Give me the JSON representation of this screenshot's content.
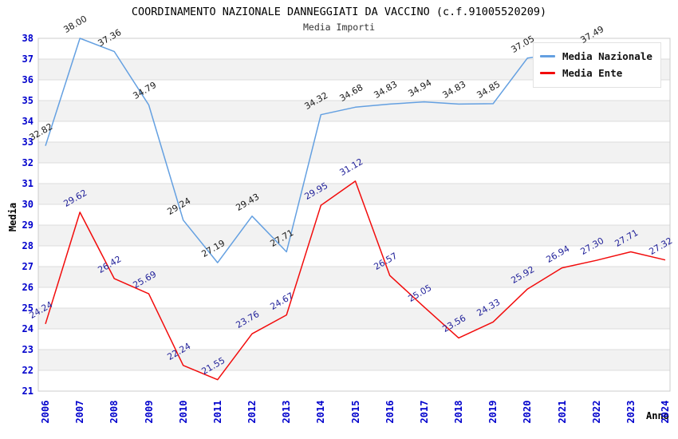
{
  "header": {
    "title": "COORDINAMENTO NAZIONALE DANNEGGIATI DA VACCINO (c.f.91005520209)",
    "subtitle": "Media Importi"
  },
  "axes": {
    "y_title": "Media",
    "x_title": "Anno",
    "y_ticks": [
      21,
      22,
      23,
      24,
      25,
      26,
      27,
      28,
      29,
      30,
      31,
      32,
      33,
      34,
      35,
      36,
      37,
      38
    ],
    "categories": [
      "2006",
      "2007",
      "2008",
      "2009",
      "2010",
      "2011",
      "2012",
      "2013",
      "2014",
      "2015",
      "2016",
      "2017",
      "2018",
      "2019",
      "2020",
      "2021",
      "2022",
      "2023",
      "2024"
    ]
  },
  "legend": {
    "items": [
      {
        "label": "Media Nazionale",
        "color": "#64a0e1"
      },
      {
        "label": "Media Ente",
        "color": "#f20c0c"
      }
    ]
  },
  "colors": {
    "tick_label": "#0000cc",
    "band_fill": "#f2f2f2",
    "gridline": "#dcdcdc",
    "plot_border": "#cccccc",
    "national_line": "#64a0e1",
    "ente_line": "#f20c0c",
    "national_point_label": "#1a1a1a",
    "ente_point_label": "#22229a"
  },
  "chart_data": {
    "type": "line",
    "title": "COORDINAMENTO NAZIONALE DANNEGGIATI DA VACCINO (c.f.91005520209)",
    "subtitle": "Media Importi",
    "xlabel": "Anno",
    "ylabel": "Media",
    "ylim": [
      21,
      38
    ],
    "grid": true,
    "alternating_bands": true,
    "legend_position": "top-right",
    "x_categories": [
      2006,
      2007,
      2008,
      2009,
      2010,
      2011,
      2012,
      2013,
      2014,
      2015,
      2016,
      2017,
      2018,
      2019,
      2020,
      2021,
      2022,
      2023,
      2024
    ],
    "series": [
      {
        "name": "Media Nazionale",
        "color": "#64a0e1",
        "label_color": "#1a1a1a",
        "points": [
          {
            "year": 2006,
            "value": 32.82,
            "label": "32.82"
          },
          {
            "year": 2007,
            "value": 38.0,
            "label": "38.00"
          },
          {
            "year": 2008,
            "value": 37.36,
            "label": "37.36"
          },
          {
            "year": 2009,
            "value": 34.79,
            "label": "34.79"
          },
          {
            "year": 2010,
            "value": 29.24,
            "label": "29.24"
          },
          {
            "year": 2011,
            "value": 27.19,
            "label": "27.19"
          },
          {
            "year": 2012,
            "value": 29.43,
            "label": "29.43"
          },
          {
            "year": 2013,
            "value": 27.71,
            "label": "27.71"
          },
          {
            "year": 2014,
            "value": 34.32,
            "label": "34.32"
          },
          {
            "year": 2015,
            "value": 34.68,
            "label": "34.68"
          },
          {
            "year": 2016,
            "value": 34.83,
            "label": "34.83"
          },
          {
            "year": 2017,
            "value": 34.94,
            "label": "34.94"
          },
          {
            "year": 2018,
            "value": 34.83,
            "label": "34.83"
          },
          {
            "year": 2019,
            "value": 34.85,
            "label": "34.85"
          },
          {
            "year": 2020,
            "value": 37.05,
            "label": "37.05"
          },
          {
            "year": 2022,
            "value": 37.49,
            "label": "37.49"
          }
        ]
      },
      {
        "name": "Media Ente",
        "color": "#f20c0c",
        "label_color": "#22229a",
        "points": [
          {
            "year": 2006,
            "value": 24.24,
            "label": "24.24"
          },
          {
            "year": 2007,
            "value": 29.62,
            "label": "29.62"
          },
          {
            "year": 2008,
            "value": 26.42,
            "label": "26.42"
          },
          {
            "year": 2009,
            "value": 25.69,
            "label": "25.69"
          },
          {
            "year": 2010,
            "value": 22.24,
            "label": "22.24"
          },
          {
            "year": 2011,
            "value": 21.55,
            "label": "21.55"
          },
          {
            "year": 2012,
            "value": 23.76,
            "label": "23.76"
          },
          {
            "year": 2013,
            "value": 24.67,
            "label": "24.67"
          },
          {
            "year": 2014,
            "value": 29.95,
            "label": "29.95"
          },
          {
            "year": 2015,
            "value": 31.12,
            "label": "31.12"
          },
          {
            "year": 2016,
            "value": 26.57,
            "label": "26.57"
          },
          {
            "year": 2017,
            "value": 25.05,
            "label": "25.05"
          },
          {
            "year": 2018,
            "value": 23.56,
            "label": "23.56"
          },
          {
            "year": 2019,
            "value": 24.33,
            "label": "24.33"
          },
          {
            "year": 2020,
            "value": 25.92,
            "label": "25.92"
          },
          {
            "year": 2021,
            "value": 26.94,
            "label": "26.94"
          },
          {
            "year": 2022,
            "value": 27.3,
            "label": "27.30"
          },
          {
            "year": 2023,
            "value": 27.71,
            "label": "27.71"
          },
          {
            "year": 2024,
            "value": 27.32,
            "label": "27.32"
          }
        ]
      }
    ]
  }
}
